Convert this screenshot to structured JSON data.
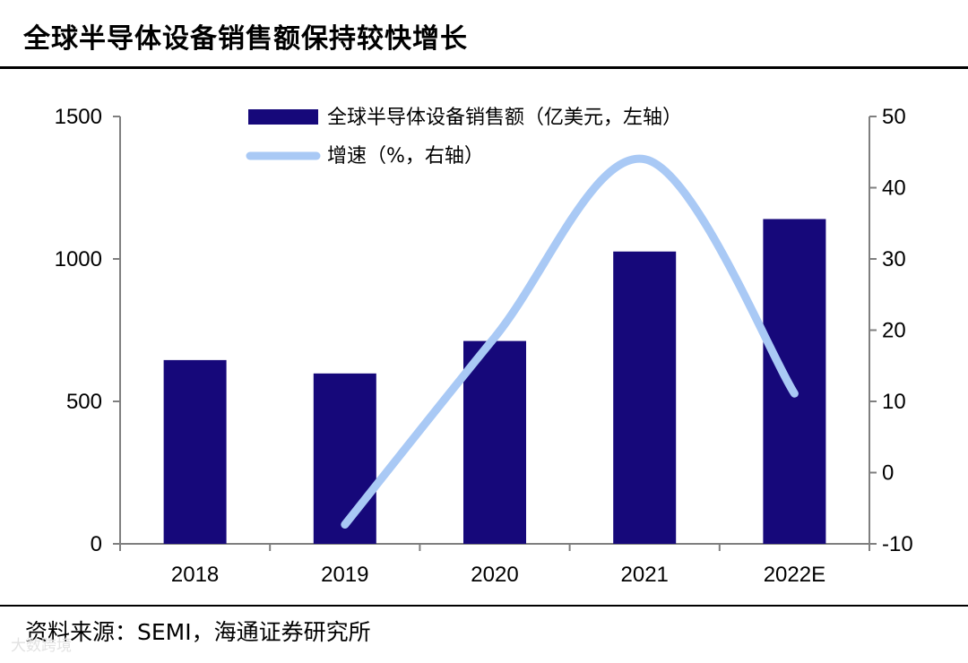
{
  "header": {
    "title": "全球半导体设备销售额保持较快增长"
  },
  "footer": {
    "source": "资料来源：SEMI，海通证券研究所",
    "watermark": "大数跨境"
  },
  "colors": {
    "bar": "#16087a",
    "line": "#a9c9f5",
    "axis": "#7f7f7f"
  },
  "chart_data": {
    "type": "bar+line",
    "title": "全球半导体设备销售额保持较快增长",
    "categories": [
      "2018",
      "2019",
      "2020",
      "2021",
      "2022E"
    ],
    "series": [
      {
        "name": "全球半导体设备销售额（亿美元，左轴）",
        "type": "bar",
        "axis": "left",
        "values": [
          645,
          598,
          712,
          1026,
          1140
        ]
      },
      {
        "name": "增速（%，右轴）",
        "type": "line",
        "axis": "right",
        "values": [
          null,
          -7.3,
          19.0,
          44.0,
          11.1
        ]
      }
    ],
    "left_axis": {
      "ylim": [
        0,
        1500
      ],
      "ticks": [
        "0",
        "500",
        "1000",
        "1500"
      ]
    },
    "right_axis": {
      "ylim": [
        -10,
        50
      ],
      "ticks": [
        "-10",
        "0",
        "10",
        "20",
        "30",
        "40",
        "50"
      ]
    },
    "legend": {
      "position": "top-center"
    }
  }
}
